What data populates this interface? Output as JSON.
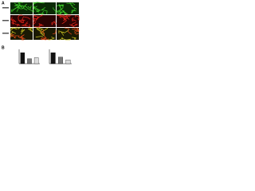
{
  "panel_labels": [
    "A",
    "B"
  ],
  "chart_data": [
    {
      "type": "bar",
      "values": [
        1.0,
        0.45,
        0.55
      ],
      "colors": [
        "#111111",
        "#777777",
        "#dddddd"
      ],
      "ylim": [
        0,
        1.3
      ]
    },
    {
      "type": "bar",
      "values": [
        1.0,
        0.6,
        0.35
      ],
      "colors": [
        "#111111",
        "#777777",
        "#dddddd"
      ],
      "ylim": [
        0,
        1.3
      ]
    }
  ]
}
